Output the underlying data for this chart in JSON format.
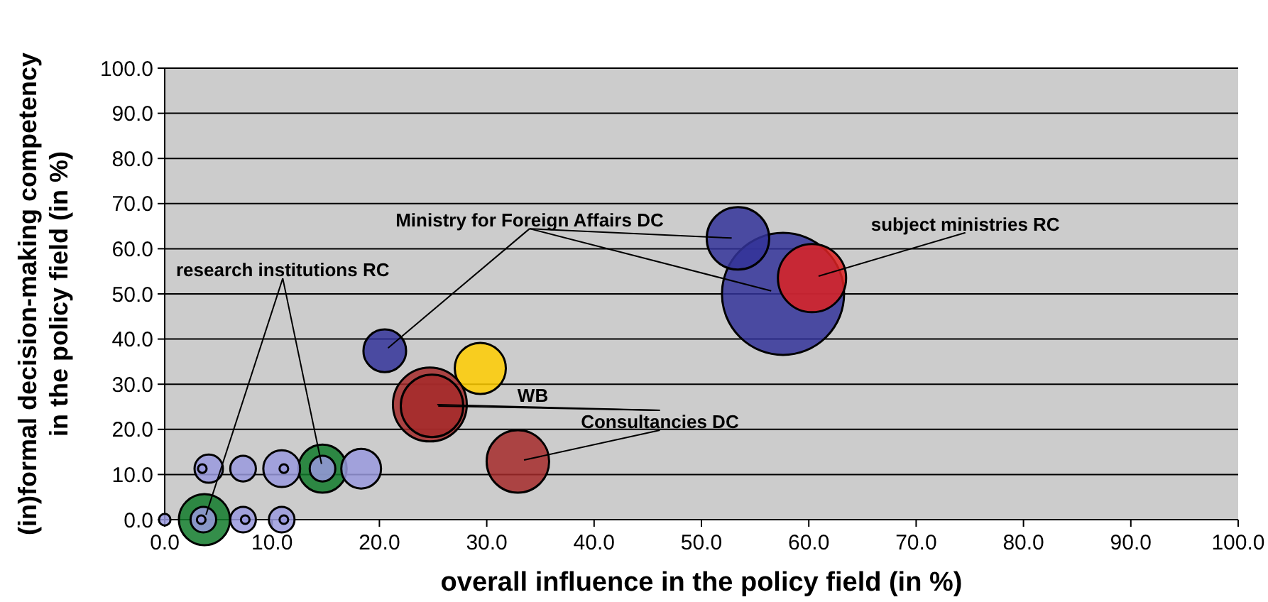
{
  "chart_data": {
    "type": "bubble",
    "xlabel": "overall influence in the policy field (in %)",
    "ylabel": "(in)formal decision-making competency\nin the policy field (in %)",
    "grid": "y",
    "xlim": [
      0,
      100
    ],
    "ylim": [
      0,
      100
    ],
    "xticks": [
      {
        "value": 0,
        "label": "0.0"
      },
      {
        "value": 10,
        "label": "10.0"
      },
      {
        "value": 20,
        "label": "20.0"
      },
      {
        "value": 30,
        "label": "30.0"
      },
      {
        "value": 40,
        "label": "40.0"
      },
      {
        "value": 50,
        "label": "50.0"
      },
      {
        "value": 60,
        "label": "60.0"
      },
      {
        "value": 70,
        "label": "70.0"
      },
      {
        "value": 80,
        "label": "80.0"
      },
      {
        "value": 90,
        "label": "90.0"
      },
      {
        "value": 100,
        "label": "100.0"
      }
    ],
    "yticks": [
      {
        "value": 0,
        "label": "0.0"
      },
      {
        "value": 10,
        "label": "10.0"
      },
      {
        "value": 20,
        "label": "20.0"
      },
      {
        "value": 30,
        "label": "30.0"
      },
      {
        "value": 40,
        "label": "40.0"
      },
      {
        "value": 50,
        "label": "50.0"
      },
      {
        "value": 60,
        "label": "60.0"
      },
      {
        "value": 70,
        "label": "70.0"
      },
      {
        "value": 80,
        "label": "80.0"
      },
      {
        "value": 90,
        "label": "90.0"
      },
      {
        "value": 100,
        "label": "100.0"
      }
    ],
    "annotations": [
      {
        "text": "Ministry for Foreign Affairs DC",
        "x": 20.5,
        "y": 37.4
      },
      {
        "text": "subject ministries RC",
        "x": 60.3,
        "y": 53.5
      },
      {
        "text": "research institutions RC",
        "x": 14.7,
        "y": 11.3
      },
      {
        "text": "WB",
        "x": 29.4,
        "y": 33.5
      },
      {
        "text": "Consultancies DC",
        "x": 32.9,
        "y": 12.9
      }
    ],
    "series": [
      {
        "color": "#333399",
        "x": [
          57.6,
          20.5,
          53.4
        ],
        "values": [
          50,
          37.4,
          62.3
        ],
        "sizes": [
          1,
          0.122,
          0.262
        ]
      },
      {
        "color": "#dd2222",
        "x": [
          60.3
        ],
        "values": [
          53.5
        ],
        "sizes": [
          0.312
        ]
      },
      {
        "color": "#117a2a",
        "x": [
          3.7,
          14.7
        ],
        "values": [
          0,
          11.3
        ],
        "sizes": [
          0.175,
          0.156
        ]
      },
      {
        "color": "#ffcc00",
        "x": [
          29.4
        ],
        "values": [
          33.5
        ],
        "sizes": [
          0.175
        ]
      },
      {
        "color": "#a52a2a",
        "x": [
          24.7,
          24.9,
          32.9
        ],
        "values": [
          25.5,
          25.2,
          12.9
        ],
        "sizes": [
          0.366,
          0.262,
          0.262
        ]
      },
      {
        "color": "#9999dd",
        "x": [
          0,
          4.1,
          3.5,
          7.3,
          10.9,
          11.1,
          14.7,
          18.3,
          3.6,
          3.4,
          7.3,
          7.5,
          10.9,
          11.1
        ],
        "values": [
          0,
          11.3,
          11.3,
          11.3,
          11.3,
          11.3,
          11.3,
          11.3,
          0,
          0,
          0,
          0,
          0,
          0
        ],
        "sizes": [
          0.009,
          0.054,
          0.005,
          0.044,
          0.091,
          0.005,
          0.044,
          0.106,
          0.044,
          0.005,
          0.044,
          0.005,
          0.044,
          0.005
        ]
      }
    ]
  }
}
